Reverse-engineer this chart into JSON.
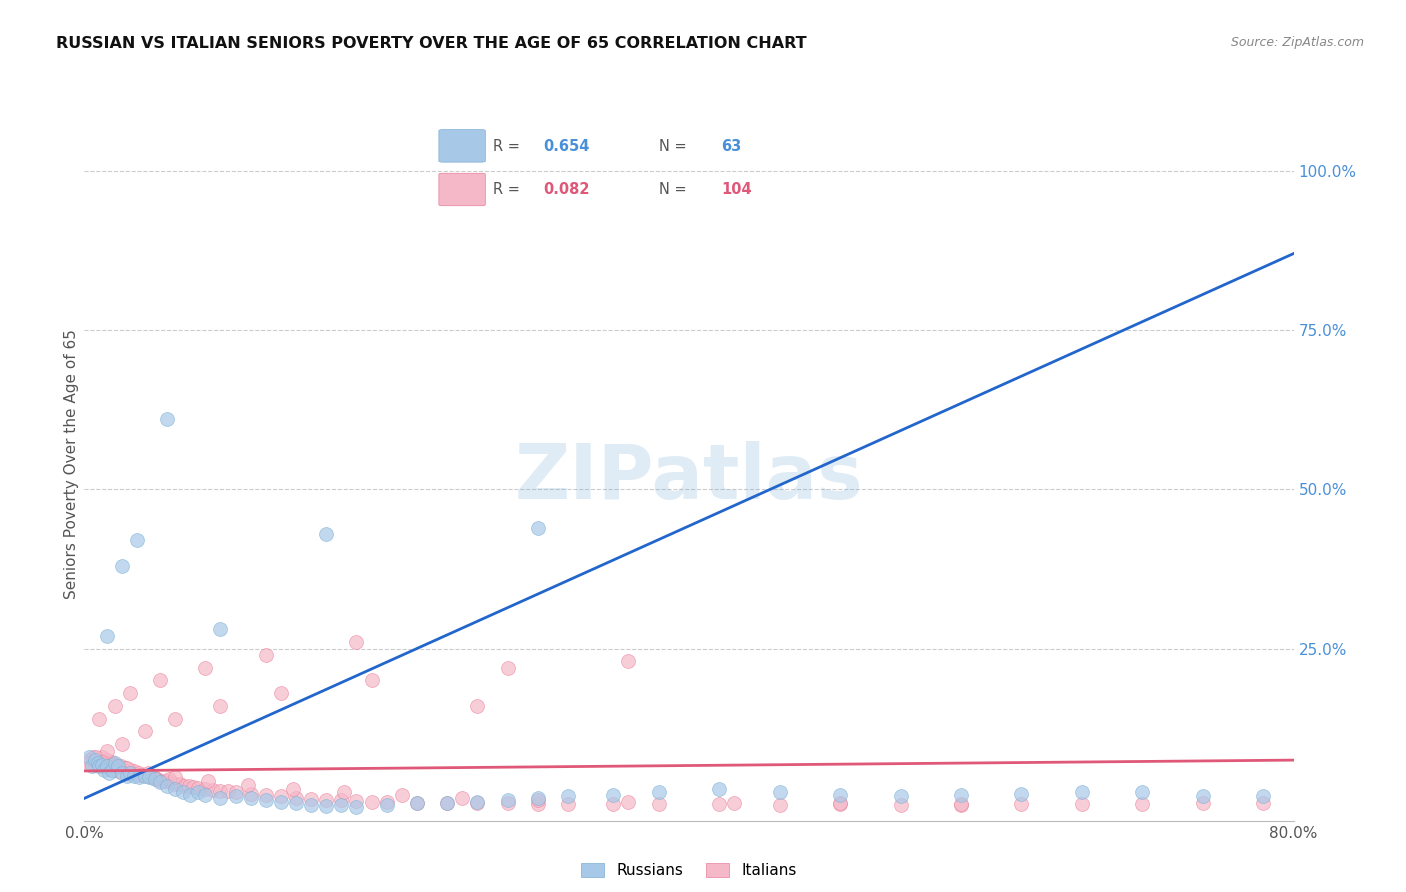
{
  "title": "RUSSIAN VS ITALIAN SENIORS POVERTY OVER THE AGE OF 65 CORRELATION CHART",
  "source": "Source: ZipAtlas.com",
  "ylabel": "Seniors Poverty Over the Age of 65",
  "xlim": [
    0.0,
    0.8
  ],
  "ylim": [
    -0.02,
    1.1
  ],
  "yticks": [
    0.0,
    0.25,
    0.5,
    0.75,
    1.0
  ],
  "yticklabels_right": [
    "",
    "25.0%",
    "50.0%",
    "75.0%",
    "100.0%"
  ],
  "russian_color": "#a8c8e8",
  "russian_edge_color": "#7bafd4",
  "italian_color": "#f5b8c8",
  "italian_edge_color": "#e8809a",
  "russian_R": "0.654",
  "russian_N": "63",
  "italian_R": "0.082",
  "italian_N": "104",
  "blue_line_color": "#2266cc",
  "pink_line_color": "#e05878",
  "blue_line_x": [
    0.0,
    0.8
  ],
  "blue_line_y": [
    0.015,
    0.87
  ],
  "pink_line_x": [
    0.0,
    0.8
  ],
  "pink_line_y": [
    0.058,
    0.075
  ],
  "watermark_color": "#cce0f0",
  "watermark_alpha": 0.6,
  "background_color": "#ffffff",
  "grid_color": "#cccccc",
  "ytick_color": "#4a90d9",
  "russian_scatter_x": [
    0.003,
    0.005,
    0.007,
    0.009,
    0.01,
    0.012,
    0.013,
    0.015,
    0.016,
    0.018,
    0.02,
    0.022,
    0.025,
    0.028,
    0.03,
    0.033,
    0.036,
    0.04,
    0.043,
    0.047,
    0.05,
    0.055,
    0.06,
    0.065,
    0.07,
    0.075,
    0.08,
    0.09,
    0.1,
    0.11,
    0.12,
    0.13,
    0.14,
    0.15,
    0.16,
    0.17,
    0.18,
    0.2,
    0.22,
    0.24,
    0.26,
    0.28,
    0.3,
    0.32,
    0.35,
    0.38,
    0.42,
    0.46,
    0.5,
    0.54,
    0.58,
    0.62,
    0.66,
    0.7,
    0.74,
    0.78,
    0.015,
    0.025,
    0.035,
    0.055,
    0.09,
    0.16,
    0.3
  ],
  "russian_scatter_y": [
    0.08,
    0.065,
    0.075,
    0.07,
    0.065,
    0.068,
    0.06,
    0.065,
    0.055,
    0.06,
    0.07,
    0.065,
    0.055,
    0.05,
    0.055,
    0.05,
    0.048,
    0.05,
    0.048,
    0.045,
    0.04,
    0.035,
    0.03,
    0.025,
    0.02,
    0.025,
    0.02,
    0.015,
    0.018,
    0.015,
    0.012,
    0.01,
    0.008,
    0.005,
    0.003,
    0.005,
    0.002,
    0.005,
    0.008,
    0.008,
    0.01,
    0.012,
    0.015,
    0.018,
    0.02,
    0.025,
    0.03,
    0.025,
    0.02,
    0.018,
    0.02,
    0.022,
    0.025,
    0.025,
    0.018,
    0.018,
    0.27,
    0.38,
    0.42,
    0.61,
    0.28,
    0.43,
    0.44
  ],
  "italian_scatter_x": [
    0.003,
    0.006,
    0.009,
    0.012,
    0.015,
    0.018,
    0.021,
    0.024,
    0.027,
    0.03,
    0.033,
    0.036,
    0.039,
    0.042,
    0.045,
    0.048,
    0.051,
    0.054,
    0.057,
    0.06,
    0.063,
    0.066,
    0.069,
    0.072,
    0.075,
    0.08,
    0.085,
    0.09,
    0.095,
    0.1,
    0.11,
    0.12,
    0.13,
    0.14,
    0.15,
    0.16,
    0.17,
    0.18,
    0.19,
    0.2,
    0.22,
    0.24,
    0.26,
    0.28,
    0.3,
    0.32,
    0.35,
    0.38,
    0.42,
    0.46,
    0.5,
    0.54,
    0.58,
    0.62,
    0.66,
    0.7,
    0.74,
    0.78,
    0.01,
    0.02,
    0.03,
    0.05,
    0.08,
    0.12,
    0.18,
    0.26,
    0.36,
    0.008,
    0.015,
    0.025,
    0.04,
    0.06,
    0.09,
    0.13,
    0.19,
    0.28,
    0.003,
    0.007,
    0.011,
    0.016,
    0.022,
    0.029,
    0.037,
    0.046,
    0.056,
    0.012,
    0.018,
    0.028,
    0.042,
    0.06,
    0.082,
    0.108,
    0.138,
    0.172,
    0.21,
    0.25,
    0.3,
    0.36,
    0.43,
    0.5,
    0.58
  ],
  "italian_scatter_y": [
    0.075,
    0.08,
    0.075,
    0.08,
    0.075,
    0.072,
    0.068,
    0.065,
    0.062,
    0.06,
    0.058,
    0.055,
    0.052,
    0.05,
    0.048,
    0.045,
    0.043,
    0.042,
    0.04,
    0.038,
    0.037,
    0.035,
    0.034,
    0.033,
    0.032,
    0.03,
    0.028,
    0.027,
    0.026,
    0.025,
    0.022,
    0.02,
    0.018,
    0.016,
    0.014,
    0.013,
    0.012,
    0.011,
    0.01,
    0.009,
    0.008,
    0.008,
    0.007,
    0.007,
    0.006,
    0.006,
    0.006,
    0.006,
    0.006,
    0.005,
    0.006,
    0.005,
    0.005,
    0.006,
    0.006,
    0.006,
    0.007,
    0.007,
    0.14,
    0.16,
    0.18,
    0.2,
    0.22,
    0.24,
    0.26,
    0.16,
    0.23,
    0.08,
    0.09,
    0.1,
    0.12,
    0.14,
    0.16,
    0.18,
    0.2,
    0.22,
    0.07,
    0.068,
    0.065,
    0.062,
    0.058,
    0.055,
    0.052,
    0.049,
    0.046,
    0.072,
    0.068,
    0.062,
    0.055,
    0.048,
    0.042,
    0.036,
    0.03,
    0.025,
    0.02,
    0.016,
    0.013,
    0.01,
    0.008,
    0.007,
    0.006
  ]
}
